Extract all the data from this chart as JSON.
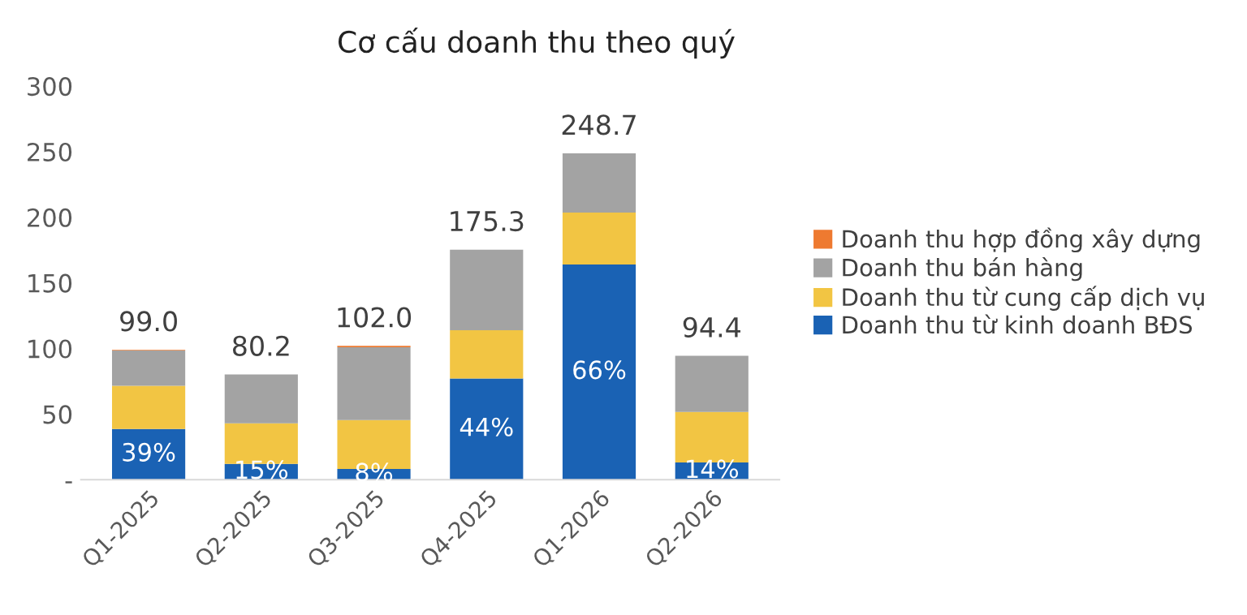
{
  "chart_data": {
    "type": "bar",
    "title": "Cơ cấu doanh thu theo quý",
    "stacked": true,
    "categories": [
      "Q1-2025",
      "Q2-2025",
      "Q3-2025",
      "Q4-2025",
      "Q1-2026",
      "Q2-2026"
    ],
    "series": [
      {
        "name": "Doanh thu từ kinh doanh BĐS",
        "color": "#1a62b4",
        "values": [
          38.6,
          12.0,
          8.2,
          77.1,
          164.1,
          13.2
        ]
      },
      {
        "name": "Doanh thu từ cung cấp dịch vụ",
        "color": "#f2c543",
        "values": [
          32.9,
          30.9,
          37.2,
          36.9,
          39.5,
          38.5
        ]
      },
      {
        "name": "Doanh thu bán hàng",
        "color": "#a3a3a3",
        "values": [
          27.0,
          37.3,
          55.6,
          61.3,
          45.1,
          42.7
        ]
      },
      {
        "name": "Doanh thu hợp đồng xây dựng",
        "color": "#ee7a30",
        "values": [
          0.5,
          0.0,
          1.0,
          0.0,
          0.0,
          0.0
        ]
      }
    ],
    "annotations": [
      "39%",
      "15%",
      "8%",
      "44%",
      "66%",
      "14%"
    ],
    "totals": [
      "99.0",
      "80.2",
      "102.0",
      "175.3",
      "248.7",
      "94.4"
    ],
    "ylim": [
      0,
      300
    ],
    "yticks": [
      {
        "value": 0,
        "label": "-"
      },
      50,
      100,
      150,
      200,
      250,
      300
    ],
    "grid": false,
    "legend": "right"
  }
}
